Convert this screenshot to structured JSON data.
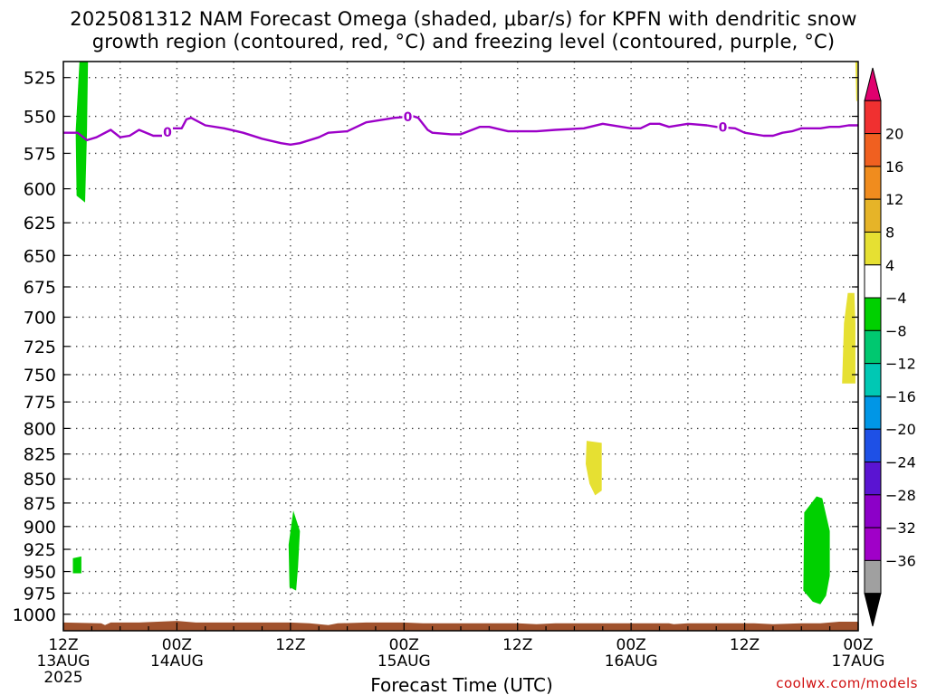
{
  "title_line1": "2025081312 NAM Forecast Omega (shaded, μbar/s) for KPFN with dendritic snow",
  "title_line2": "growth region (contoured, red, °C) and freezing level (contoured, purple, °C)",
  "credit": "coolwx.com/models",
  "chart_data": {
    "type": "heatmap",
    "xlabel": "Forecast Time (UTC)",
    "x_range_hours": [
      0,
      84
    ],
    "x_ticks": [
      {
        "hour": 0,
        "label": "12Z",
        "sub": "13AUG",
        "sub2": "2025"
      },
      {
        "hour": 12,
        "label": "00Z",
        "sub": "14AUG",
        "sub2": ""
      },
      {
        "hour": 24,
        "label": "12Z",
        "sub": "",
        "sub2": ""
      },
      {
        "hour": 36,
        "label": "00Z",
        "sub": "15AUG",
        "sub2": ""
      },
      {
        "hour": 48,
        "label": "12Z",
        "sub": "",
        "sub2": ""
      },
      {
        "hour": 60,
        "label": "00Z",
        "sub": "16AUG",
        "sub2": ""
      },
      {
        "hour": 72,
        "label": "12Z",
        "sub": "",
        "sub2": ""
      },
      {
        "hour": 84,
        "label": "00Z",
        "sub": "17AUG",
        "sub2": ""
      }
    ],
    "y_pressure_ticks": [
      525,
      550,
      575,
      600,
      625,
      650,
      675,
      700,
      725,
      750,
      775,
      800,
      825,
      850,
      875,
      900,
      925,
      950,
      975,
      1000
    ],
    "y_range_hpa": [
      515,
      1020
    ],
    "y_scale": "log",
    "grid": true,
    "colorbar": {
      "units": "μbar/s",
      "labels": [
        "20",
        "16",
        "12",
        "8",
        "4",
        "−4",
        "−8",
        "−12",
        "−16",
        "−20",
        "−24",
        "−28",
        "−32",
        "−36"
      ],
      "colors_top_to_bottom": [
        "#e0006e",
        "#f03030",
        "#f06020",
        "#f08c1e",
        "#e6b428",
        "#e6e032",
        "#ffffff",
        "#00d000",
        "#00c870",
        "#00c8b4",
        "#0096e6",
        "#1e50e6",
        "#5a14d2",
        "#8c00c8",
        "#a000c8",
        "#a0a0a0",
        "#000000"
      ]
    },
    "omega_blobs": [
      {
        "color": "#00d000",
        "level": "-4 to -8",
        "points": [
          [
            1.7,
            515
          ],
          [
            2.6,
            515
          ],
          [
            2.5,
            560
          ],
          [
            2.3,
            610
          ],
          [
            1.4,
            605
          ],
          [
            1.3,
            560
          ]
        ]
      },
      {
        "color": "#00d000",
        "level": "-4 to -8",
        "points": [
          [
            1.0,
            935
          ],
          [
            1.9,
            933
          ],
          [
            1.9,
            952
          ],
          [
            1.0,
            952
          ]
        ]
      },
      {
        "color": "#00d000",
        "level": "-4 to -8",
        "points": [
          [
            24.3,
            883
          ],
          [
            25.0,
            905
          ],
          [
            24.8,
            945
          ],
          [
            24.6,
            972
          ],
          [
            23.9,
            968
          ],
          [
            23.8,
            920
          ]
        ]
      },
      {
        "color": "#e6e032",
        "level": "4 to 8",
        "points": [
          [
            55.3,
            812
          ],
          [
            56.9,
            814
          ],
          [
            56.9,
            862
          ],
          [
            56.2,
            867
          ],
          [
            55.6,
            855
          ],
          [
            55.2,
            835
          ]
        ]
      },
      {
        "color": "#00d000",
        "level": "-4 to -8",
        "points": [
          [
            79.6,
            868
          ],
          [
            80.2,
            870
          ],
          [
            81.0,
            905
          ],
          [
            81.0,
            955
          ],
          [
            80.6,
            978
          ],
          [
            80.0,
            988
          ],
          [
            79.2,
            985
          ],
          [
            78.2,
            972
          ],
          [
            78.3,
            885
          ]
        ]
      },
      {
        "color": "#e6e032",
        "level": "4 to 8",
        "points": [
          [
            82.9,
            680
          ],
          [
            83.6,
            680
          ],
          [
            83.7,
            705
          ],
          [
            83.7,
            758
          ],
          [
            82.3,
            758
          ],
          [
            82.5,
            705
          ]
        ]
      },
      {
        "color": "#e6e032",
        "level": "4 to 8",
        "points": [
          [
            83.7,
            515
          ],
          [
            83.9,
            515
          ],
          [
            83.9,
            540
          ],
          [
            83.8,
            540
          ]
        ]
      }
    ],
    "freezing_level": {
      "color": "#9c00c8",
      "contour_label": "0",
      "label_hours": [
        11.0,
        36.4,
        69.7
      ],
      "points": [
        [
          0,
          561
        ],
        [
          1.5,
          561
        ],
        [
          2.5,
          566
        ],
        [
          3.5,
          564
        ],
        [
          5.0,
          559
        ],
        [
          6.0,
          564
        ],
        [
          7.0,
          563
        ],
        [
          8.0,
          559
        ],
        [
          9.5,
          563
        ],
        [
          10.5,
          563
        ],
        [
          11.5,
          558
        ],
        [
          12.5,
          558
        ],
        [
          13.0,
          552
        ],
        [
          13.5,
          551
        ],
        [
          15.0,
          556
        ],
        [
          17.0,
          558
        ],
        [
          19.0,
          561
        ],
        [
          21.0,
          565
        ],
        [
          23.0,
          568
        ],
        [
          24.0,
          569
        ],
        [
          25.0,
          568
        ],
        [
          27.0,
          564
        ],
        [
          28.0,
          561
        ],
        [
          30.0,
          560
        ],
        [
          32.0,
          554
        ],
        [
          35.0,
          551
        ],
        [
          37.0,
          550
        ],
        [
          37.5,
          551
        ],
        [
          38.5,
          559
        ],
        [
          39.0,
          561
        ],
        [
          41.0,
          562
        ],
        [
          42.0,
          562
        ],
        [
          44.0,
          557
        ],
        [
          45.0,
          557
        ],
        [
          47.0,
          560
        ],
        [
          50.0,
          560
        ],
        [
          52.0,
          559
        ],
        [
          55.0,
          558
        ],
        [
          57.0,
          555
        ],
        [
          59.0,
          557
        ],
        [
          60.0,
          558
        ],
        [
          61.0,
          558
        ],
        [
          62.0,
          555
        ],
        [
          63.0,
          555
        ],
        [
          64.0,
          557
        ],
        [
          66.0,
          555
        ],
        [
          68.0,
          556
        ],
        [
          69.0,
          557
        ],
        [
          71.0,
          558
        ],
        [
          72.0,
          561
        ],
        [
          74.0,
          563
        ],
        [
          75.0,
          563
        ],
        [
          76.0,
          561
        ],
        [
          77.0,
          560
        ],
        [
          78.0,
          558
        ],
        [
          80.0,
          558
        ],
        [
          81.0,
          557
        ],
        [
          82.0,
          557
        ],
        [
          83.0,
          556
        ],
        [
          84.0,
          556
        ]
      ]
    },
    "terrain": {
      "color": "#a0522d",
      "points": [
        [
          0,
          1010
        ],
        [
          4.0,
          1011
        ],
        [
          4.4,
          1013
        ],
        [
          5.0,
          1010
        ],
        [
          8.0,
          1010
        ],
        [
          10.0,
          1009
        ],
        [
          12.0,
          1008
        ],
        [
          14.0,
          1010
        ],
        [
          20.0,
          1010
        ],
        [
          24.0,
          1010
        ],
        [
          26.0,
          1011
        ],
        [
          28.0,
          1013
        ],
        [
          29.0,
          1011
        ],
        [
          32.0,
          1010
        ],
        [
          36.0,
          1010
        ],
        [
          38.0,
          1011
        ],
        [
          48.0,
          1011
        ],
        [
          50.0,
          1012
        ],
        [
          52.0,
          1011
        ],
        [
          64.0,
          1011
        ],
        [
          64.5,
          1012
        ],
        [
          66.0,
          1011
        ],
        [
          73.0,
          1011
        ],
        [
          75.0,
          1012
        ],
        [
          78.0,
          1011
        ],
        [
          80.0,
          1011
        ],
        [
          82.0,
          1009
        ],
        [
          84.0,
          1009
        ]
      ]
    }
  }
}
